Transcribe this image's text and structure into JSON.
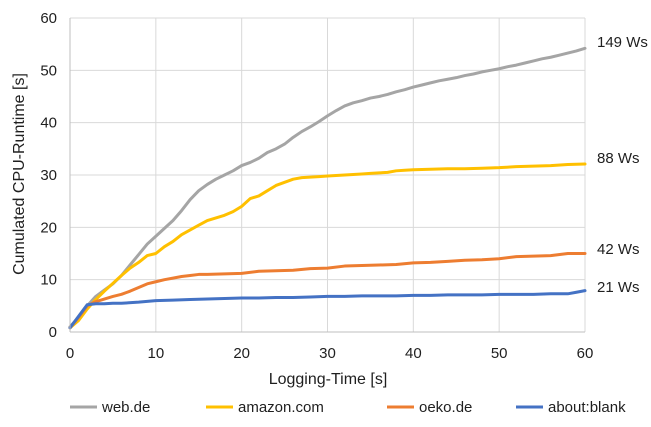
{
  "chart_data": {
    "type": "line",
    "title": "",
    "xlabel": "Logging-Time [s]",
    "ylabel": "Cumulated CPU-Runtime [s]",
    "xlim": [
      0,
      60
    ],
    "ylim": [
      0,
      60
    ],
    "xticks": [
      0,
      10,
      20,
      30,
      40,
      50,
      60
    ],
    "yticks": [
      0,
      10,
      20,
      30,
      40,
      50,
      60
    ],
    "grid": true,
    "legend_position": "bottom",
    "series": [
      {
        "name": "web.de",
        "color": "#a5a5a5",
        "end_label": "149 Ws",
        "x": [
          0,
          1,
          2,
          3,
          4,
          5,
          6,
          7,
          8,
          9,
          10,
          11,
          12,
          13,
          14,
          15,
          16,
          17,
          18,
          19,
          20,
          21,
          22,
          23,
          24,
          25,
          26,
          27,
          28,
          29,
          30,
          31,
          32,
          33,
          34,
          35,
          36,
          37,
          38,
          39,
          40,
          41,
          42,
          43,
          44,
          45,
          46,
          47,
          48,
          49,
          50,
          51,
          52,
          53,
          54,
          55,
          56,
          57,
          58,
          59,
          60
        ],
        "values": [
          1.0,
          2.8,
          5.0,
          6.8,
          8.0,
          9.2,
          10.8,
          12.8,
          14.8,
          16.8,
          18.3,
          19.8,
          21.3,
          23.2,
          25.3,
          27.0,
          28.2,
          29.2,
          30.0,
          30.8,
          31.8,
          32.4,
          33.2,
          34.3,
          35.0,
          35.9,
          37.2,
          38.3,
          39.2,
          40.2,
          41.3,
          42.3,
          43.2,
          43.8,
          44.2,
          44.7,
          45.0,
          45.4,
          45.9,
          46.3,
          46.8,
          47.2,
          47.6,
          48.0,
          48.3,
          48.6,
          49.0,
          49.3,
          49.7,
          50.0,
          50.3,
          50.7,
          51.0,
          51.4,
          51.8,
          52.2,
          52.5,
          52.9,
          53.3,
          53.7,
          54.2
        ]
      },
      {
        "name": "amazon.com",
        "color": "#ffc000",
        "end_label": "88 Ws",
        "x": [
          0,
          1,
          2,
          3,
          4,
          5,
          6,
          7,
          8,
          9,
          10,
          11,
          12,
          13,
          14,
          15,
          16,
          17,
          18,
          19,
          20,
          21,
          22,
          23,
          24,
          25,
          26,
          27,
          28,
          29,
          30,
          31,
          32,
          33,
          34,
          35,
          36,
          37,
          38,
          39,
          40,
          42,
          44,
          46,
          48,
          50,
          52,
          54,
          56,
          58,
          60
        ],
        "values": [
          0.8,
          2.2,
          4.4,
          6.2,
          7.8,
          9.3,
          10.8,
          12.2,
          13.3,
          14.6,
          15.0,
          16.3,
          17.3,
          18.6,
          19.5,
          20.4,
          21.3,
          21.8,
          22.3,
          23.0,
          24.0,
          25.5,
          26.0,
          27.0,
          28.0,
          28.6,
          29.2,
          29.5,
          29.6,
          29.7,
          29.8,
          29.9,
          30.0,
          30.1,
          30.2,
          30.3,
          30.4,
          30.5,
          30.8,
          30.9,
          31.0,
          31.1,
          31.2,
          31.2,
          31.3,
          31.4,
          31.6,
          31.7,
          31.8,
          32.0,
          32.1
        ]
      },
      {
        "name": "oeko.de",
        "color": "#ed7d31",
        "end_label": "42 Ws",
        "x": [
          0,
          1,
          2,
          3,
          4,
          5,
          6,
          7,
          8,
          9,
          10,
          11,
          12,
          13,
          14,
          15,
          16,
          18,
          20,
          22,
          24,
          26,
          28,
          30,
          32,
          34,
          36,
          38,
          40,
          42,
          44,
          46,
          48,
          50,
          52,
          54,
          56,
          58,
          60
        ],
        "values": [
          0.8,
          2.8,
          5.0,
          5.8,
          6.3,
          6.8,
          7.2,
          7.8,
          8.5,
          9.2,
          9.6,
          10.0,
          10.3,
          10.6,
          10.8,
          11.0,
          11.0,
          11.1,
          11.2,
          11.6,
          11.7,
          11.8,
          12.1,
          12.2,
          12.6,
          12.7,
          12.8,
          12.9,
          13.2,
          13.3,
          13.5,
          13.7,
          13.8,
          14.0,
          14.4,
          14.5,
          14.6,
          15.0,
          15.0
        ]
      },
      {
        "name": "about:blank",
        "color": "#4472c4",
        "end_label": "21 Ws",
        "x": [
          0,
          1,
          2,
          3,
          4,
          5,
          6,
          8,
          10,
          12,
          14,
          16,
          18,
          20,
          22,
          24,
          26,
          28,
          30,
          32,
          34,
          36,
          38,
          40,
          42,
          44,
          46,
          48,
          50,
          52,
          54,
          56,
          58,
          59,
          60
        ],
        "values": [
          0.8,
          3.0,
          5.2,
          5.4,
          5.4,
          5.5,
          5.5,
          5.7,
          6.0,
          6.1,
          6.2,
          6.3,
          6.4,
          6.5,
          6.5,
          6.6,
          6.6,
          6.7,
          6.8,
          6.8,
          6.9,
          6.9,
          6.9,
          7.0,
          7.0,
          7.1,
          7.1,
          7.1,
          7.2,
          7.2,
          7.2,
          7.3,
          7.3,
          7.6,
          7.9
        ]
      }
    ]
  }
}
